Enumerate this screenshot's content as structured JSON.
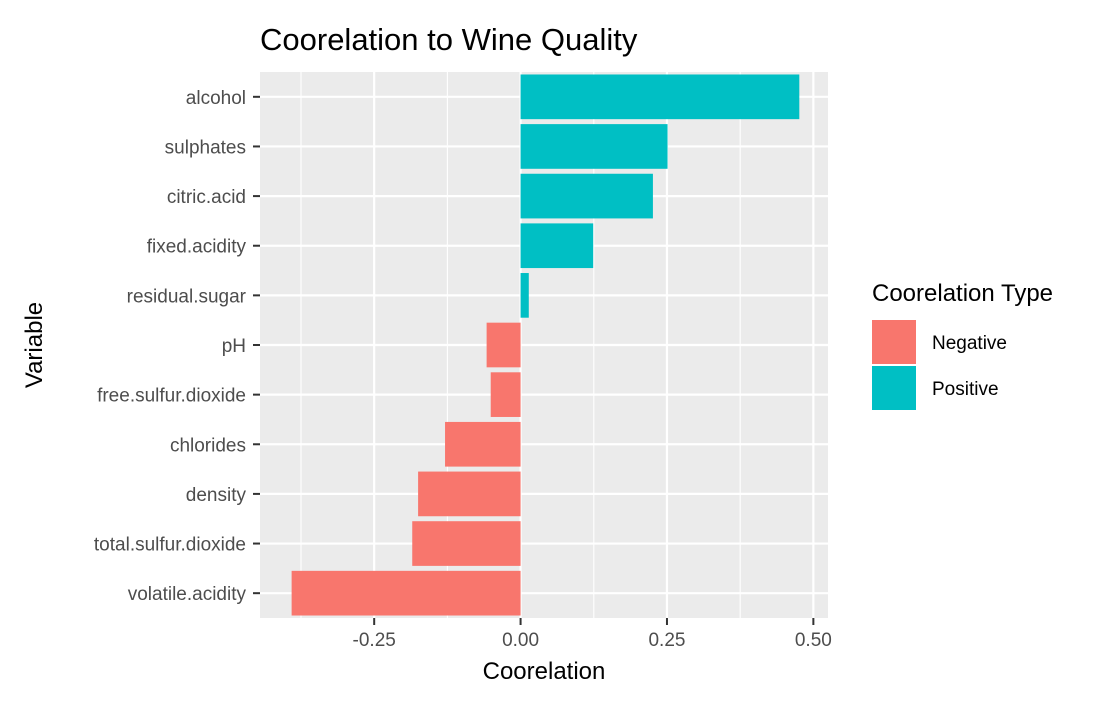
{
  "chart_data": {
    "type": "bar",
    "orientation": "horizontal",
    "title": "Coorelation to Wine Quality",
    "xlabel": "Coorelation",
    "ylabel": "Variable",
    "xlim": [
      -0.445,
      0.525
    ],
    "xticks": [
      -0.25,
      0.0,
      0.25,
      0.5
    ],
    "xtick_labels": [
      "-0.25",
      "0.00",
      "0.25",
      "0.50"
    ],
    "grid": true,
    "panel_background": "#ebebeb",
    "categories": [
      "alcohol",
      "sulphates",
      "citric.acid",
      "fixed.acidity",
      "residual.sugar",
      "pH",
      "free.sulfur.dioxide",
      "chlorides",
      "density",
      "total.sulfur.dioxide",
      "volatile.acidity"
    ],
    "values": [
      0.476,
      0.251,
      0.226,
      0.124,
      0.014,
      -0.058,
      -0.051,
      -0.129,
      -0.175,
      -0.185,
      -0.391
    ],
    "bar_type": [
      "Positive",
      "Positive",
      "Positive",
      "Positive",
      "Positive",
      "Negative",
      "Negative",
      "Negative",
      "Negative",
      "Negative",
      "Negative"
    ],
    "legend": {
      "title": "Coorelation Type",
      "position": "right",
      "entries": [
        {
          "label": "Negative",
          "color": "#f8766d"
        },
        {
          "label": "Positive",
          "color": "#00bfc4"
        }
      ]
    }
  }
}
